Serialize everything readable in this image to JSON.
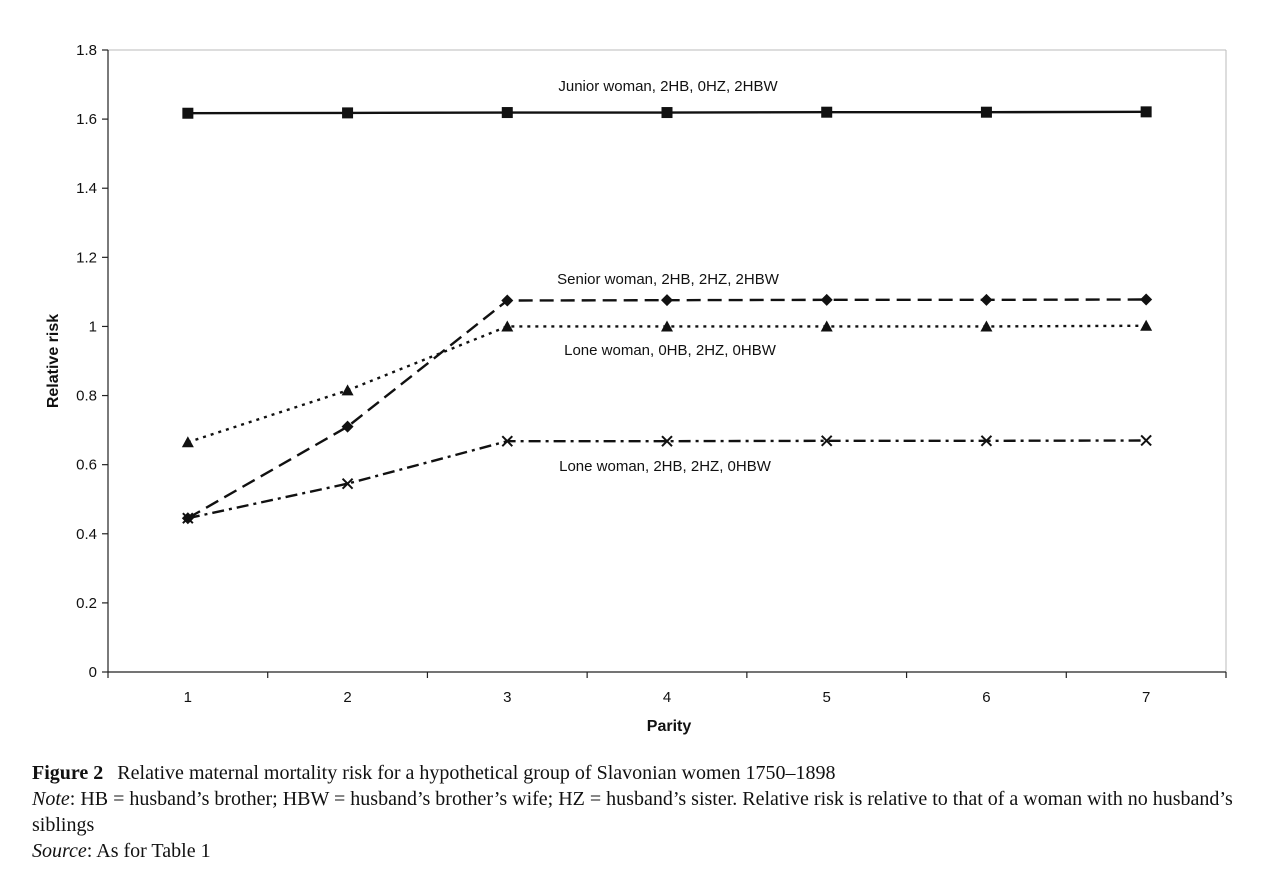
{
  "chart_data": {
    "type": "line",
    "title": "",
    "xlabel": "Parity",
    "ylabel": "Relative risk",
    "x": [
      1,
      2,
      3,
      4,
      5,
      6,
      7
    ],
    "xlim": [
      0.5,
      7.5
    ],
    "ylim": [
      0,
      1.8
    ],
    "yticks": [
      "0",
      "0.2",
      "0.4",
      "0.6",
      "0.8",
      "1",
      "1.2",
      "1.4",
      "1.6",
      "1.8"
    ],
    "xticks": [
      "1",
      "2",
      "3",
      "4",
      "5",
      "6",
      "7"
    ],
    "grid": false,
    "legend": "inline labels",
    "series": [
      {
        "name": "Junior woman, 2HB, 0HZ, 2HBW",
        "values": [
          1.617,
          1.618,
          1.619,
          1.619,
          1.62,
          1.62,
          1.621
        ],
        "marker": "square",
        "line": "solid"
      },
      {
        "name": "Senior woman, 2HB, 2HZ, 2HBW",
        "values": [
          0.445,
          0.71,
          1.075,
          1.076,
          1.077,
          1.077,
          1.078
        ],
        "marker": "diamond",
        "line": "dashed"
      },
      {
        "name": "Lone woman, 0HB, 2HZ, 0HBW",
        "values": [
          0.665,
          0.815,
          1.0,
          1.0,
          1.0,
          1.0,
          1.002
        ],
        "marker": "triangle",
        "line": "dotted"
      },
      {
        "name": "Lone woman, 2HB, 2HZ, 0HBW",
        "values": [
          0.445,
          0.545,
          0.668,
          0.668,
          0.669,
          0.669,
          0.67
        ],
        "marker": "x",
        "line": "dash-dot"
      }
    ]
  },
  "caption": {
    "figure_number": "Figure 2",
    "title": "Relative maternal mortality risk for a hypothetical group of Slavonian women 1750–1898",
    "note_label": "Note",
    "note_text": ": HB = husband’s brother; HBW = husband’s brother’s wife; HZ = husband’s sister. Relative risk is relative to that of a woman with no husband’s siblings",
    "source_label": "Source",
    "source_text": ": As for Table 1"
  }
}
